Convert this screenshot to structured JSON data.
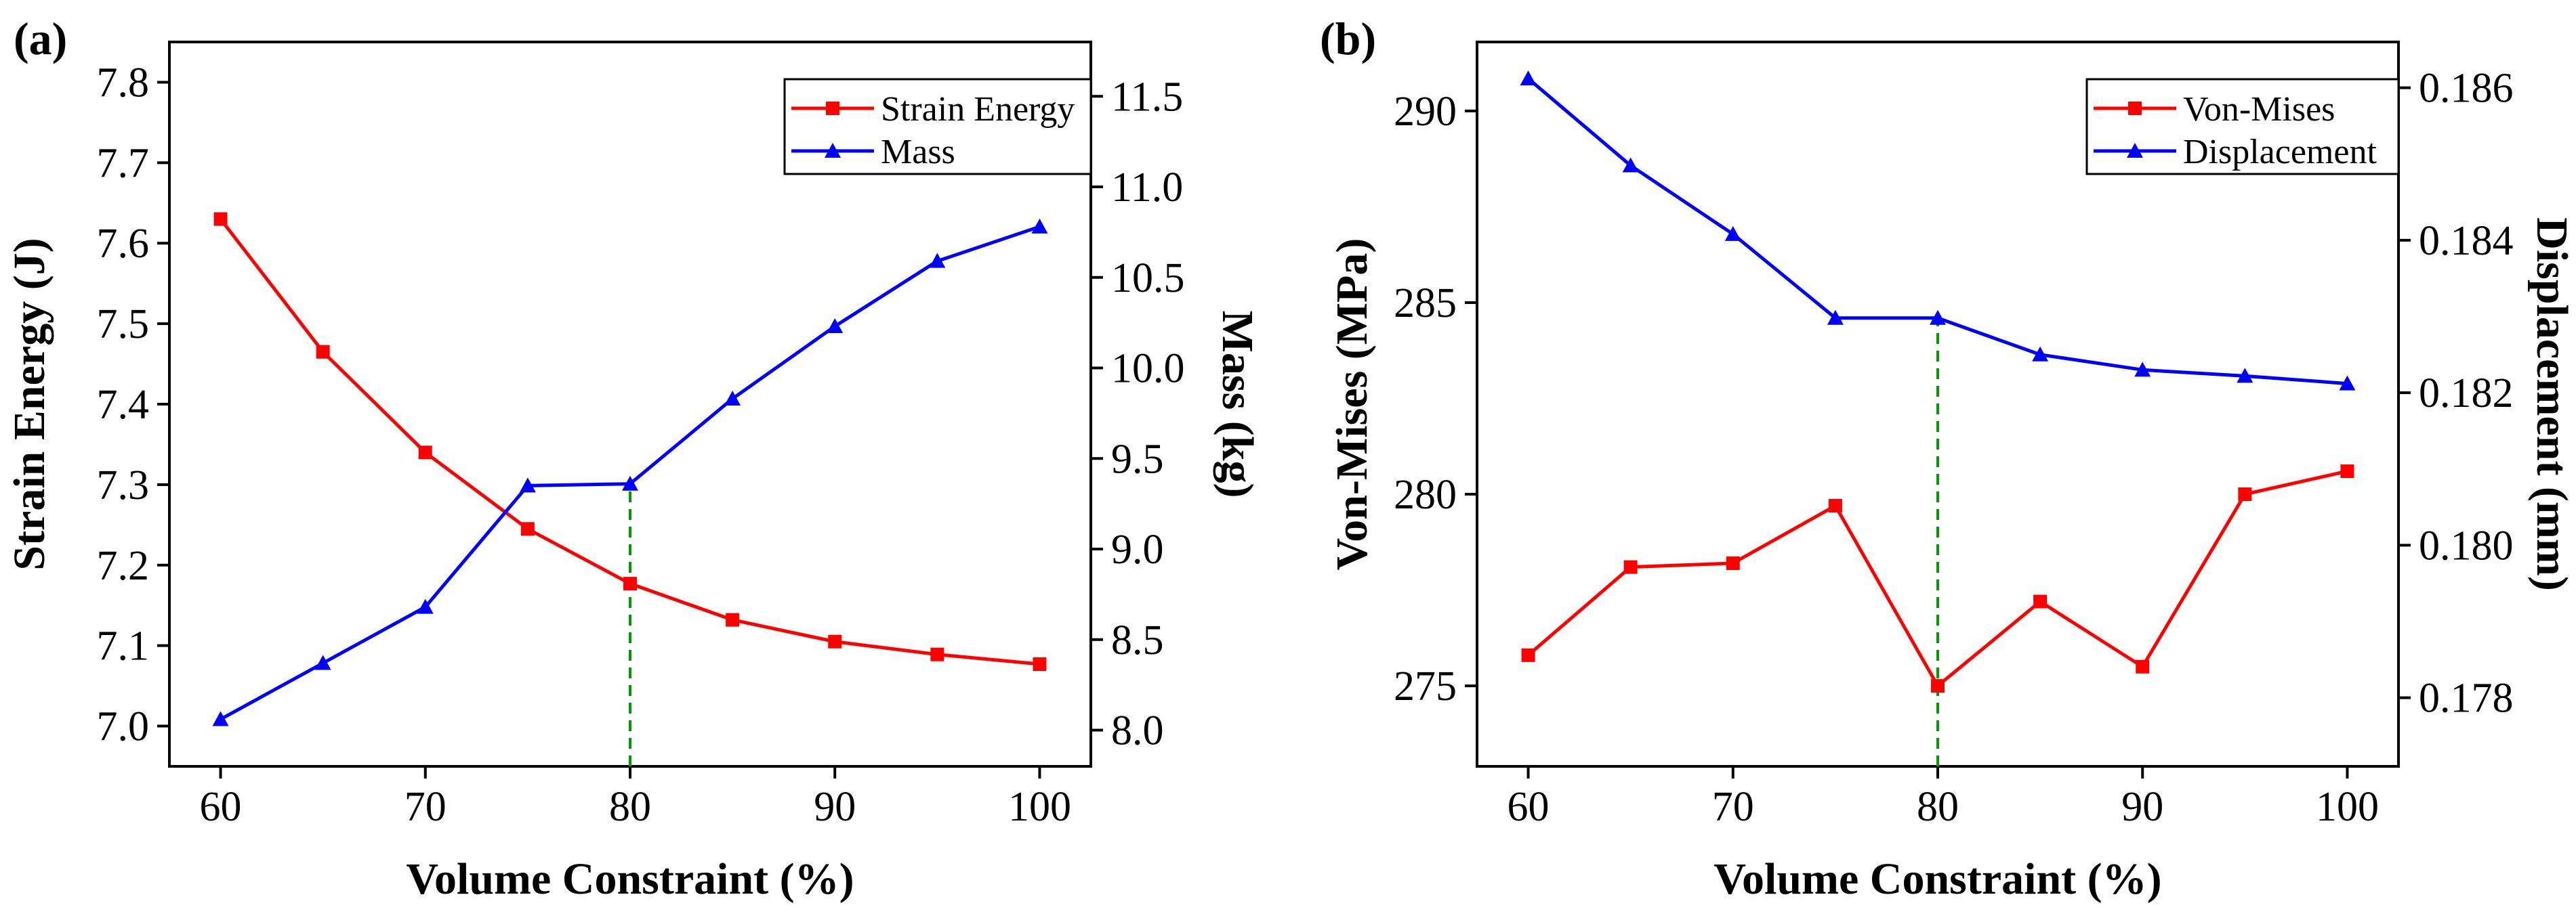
{
  "chart_data": [
    {
      "type": "line",
      "panel_label": "(a)",
      "xlabel": "Volume Constraint (%)",
      "ylabel_left": "Strain Energy (J)",
      "ylabel_right": "Mass (kg)",
      "x": [
        60,
        65,
        70,
        75,
        80,
        85,
        90,
        95,
        100
      ],
      "xlim": [
        57.5,
        102.5
      ],
      "xticks": [
        60,
        70,
        80,
        90,
        100
      ],
      "ylim_left": [
        6.95,
        7.85
      ],
      "yticks_left": [
        "7.0",
        "7.1",
        "7.2",
        "7.3",
        "7.4",
        "7.5",
        "7.6",
        "7.7",
        "7.8"
      ],
      "ylim_right": [
        7.8,
        11.8
      ],
      "yticks_right": [
        "8.0",
        "8.5",
        "9.0",
        "9.5",
        "10.0",
        "10.5",
        "11.0",
        "11.5"
      ],
      "series": [
        {
          "name": "Strain Energy",
          "axis": "left",
          "color": "#ff0000",
          "marker": "square",
          "values": [
            7.63,
            7.465,
            7.34,
            7.245,
            7.177,
            7.132,
            7.105,
            7.089,
            7.077
          ]
        },
        {
          "name": "Mass",
          "axis": "right",
          "color": "#0000ff",
          "marker": "triangle",
          "values": [
            8.06,
            8.37,
            8.68,
            9.35,
            9.36,
            9.83,
            10.23,
            10.59,
            10.78
          ]
        }
      ],
      "vline": {
        "x": 80,
        "color": "#009900",
        "style": "dashed"
      },
      "legend_position": "top-right"
    },
    {
      "type": "line",
      "panel_label": "(b)",
      "xlabel": "Volume Constraint (%)",
      "ylabel_left": "Von-Mises (MPa)",
      "ylabel_right": "Displacement (mm)",
      "x": [
        60,
        65,
        70,
        75,
        80,
        85,
        90,
        95,
        100
      ],
      "xlim": [
        57.5,
        102.5
      ],
      "xticks": [
        60,
        70,
        80,
        90,
        100
      ],
      "ylim_left": [
        272.9,
        291.8
      ],
      "yticks_left": [
        "275",
        "280",
        "285",
        "290"
      ],
      "ylim_right": [
        0.1771,
        0.1866
      ],
      "yticks_right": [
        "0.178",
        "0.180",
        "0.182",
        "0.184",
        "0.186"
      ],
      "series": [
        {
          "name": "Von-Mises",
          "axis": "left",
          "color": "#ff0000",
          "marker": "square",
          "values": [
            275.8,
            278.1,
            278.2,
            279.7,
            275.0,
            277.2,
            275.5,
            280.0,
            280.6
          ]
        },
        {
          "name": "Displacement",
          "axis": "right",
          "color": "#0000ff",
          "marker": "triangle",
          "values": [
            0.18612,
            0.18498,
            0.18408,
            0.18298,
            0.18298,
            0.1825,
            0.1823,
            0.18222,
            0.18212
          ]
        }
      ],
      "vline": {
        "x": 80,
        "color": "#009900",
        "style": "dashed"
      },
      "legend_position": "top-right"
    }
  ]
}
